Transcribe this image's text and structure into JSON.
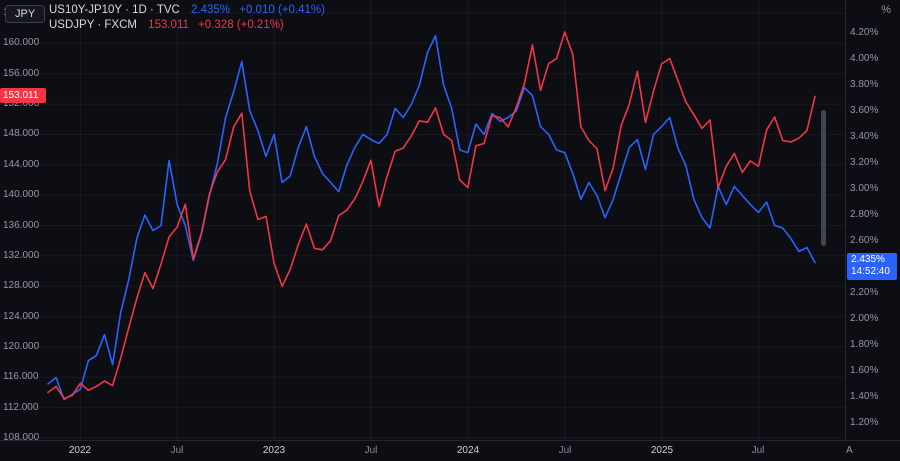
{
  "chip_left": "JPY",
  "chip_right": "%",
  "legend": {
    "rows": [
      {
        "title": "US10Y-JP10Y · 1D · TVC",
        "value": "2.435%",
        "change": "+0.010 (+0.41%)"
      },
      {
        "title": "USDJPY · FXCM",
        "value": "153.011",
        "change": "+0.328 (+0.21%)"
      }
    ]
  },
  "badges": {
    "left_price": "153.011",
    "right_value": "2.435%",
    "countdown": "14:52:40"
  },
  "corner_button": "A",
  "colors": {
    "blue": "#2962ff",
    "red": "#f23645",
    "grid": "rgba(255,255,255,0.05)",
    "axis_text": "#9298a3"
  },
  "chart_data": {
    "type": "line",
    "sampling": "semi-monthly points from Nov 2021 to mid-Oct 2025",
    "left_axis": {
      "min": 108,
      "max": 164,
      "step": 4,
      "currency": "JPY"
    },
    "right_axis": {
      "min": 1.2,
      "max": 4.2,
      "step": 0.2,
      "unit": "%"
    },
    "time_ticks": [
      {
        "label": "2022",
        "i": 4
      },
      {
        "label": "Jul",
        "i": 16
      },
      {
        "label": "2023",
        "i": 28
      },
      {
        "label": "Jul",
        "i": 40
      },
      {
        "label": "2024",
        "i": 52
      },
      {
        "label": "Jul",
        "i": 64
      },
      {
        "label": "2025",
        "i": 76
      },
      {
        "label": "Jul",
        "i": 88
      }
    ],
    "series": [
      {
        "name": "US10Y-JP10Y",
        "axis": "right",
        "color": "#2962ff",
        "last_value": 2.435,
        "values": [
          1.5,
          1.55,
          1.38,
          1.42,
          1.46,
          1.68,
          1.72,
          1.88,
          1.65,
          2.05,
          2.3,
          2.62,
          2.8,
          2.68,
          2.72,
          3.22,
          2.88,
          2.72,
          2.45,
          2.65,
          2.95,
          3.2,
          3.55,
          3.75,
          3.98,
          3.6,
          3.45,
          3.25,
          3.42,
          3.05,
          3.1,
          3.32,
          3.48,
          3.25,
          3.12,
          3.05,
          2.98,
          3.18,
          3.32,
          3.42,
          3.38,
          3.35,
          3.42,
          3.62,
          3.55,
          3.65,
          3.8,
          4.05,
          4.18,
          3.8,
          3.62,
          3.3,
          3.28,
          3.5,
          3.42,
          3.58,
          3.52,
          3.55,
          3.6,
          3.78,
          3.72,
          3.48,
          3.42,
          3.3,
          3.28,
          3.12,
          2.92,
          3.05,
          2.95,
          2.78,
          2.92,
          3.12,
          3.32,
          3.38,
          3.15,
          3.42,
          3.48,
          3.55,
          3.32,
          3.18,
          2.92,
          2.78,
          2.7,
          3.02,
          2.88,
          3.02,
          2.95,
          2.88,
          2.82,
          2.9,
          2.72,
          2.7,
          2.62,
          2.52,
          2.55,
          2.435
        ]
      },
      {
        "name": "USDJPY",
        "axis": "left",
        "color": "#f23645",
        "last_value": 153.011,
        "values": [
          114.0,
          114.8,
          113.2,
          113.6,
          115.2,
          114.3,
          114.8,
          115.5,
          114.9,
          118.5,
          122.5,
          126.4,
          129.8,
          127.7,
          130.9,
          134.5,
          135.8,
          138.8,
          131.6,
          135.0,
          140.2,
          143.1,
          144.7,
          149.0,
          150.8,
          140.5,
          136.8,
          137.2,
          131.0,
          128.0,
          130.2,
          133.5,
          136.2,
          133.0,
          132.8,
          134.0,
          137.3,
          138.0,
          139.5,
          141.8,
          144.6,
          138.5,
          142.5,
          145.8,
          146.2,
          147.8,
          149.8,
          149.6,
          151.5,
          148.0,
          147.2,
          142.0,
          141.0,
          146.5,
          146.8,
          150.5,
          150.2,
          149.0,
          151.6,
          154.6,
          159.8,
          153.8,
          157.3,
          158.0,
          161.5,
          158.5,
          149.0,
          147.2,
          146.1,
          140.6,
          143.6,
          149.2,
          152.0,
          156.3,
          149.6,
          153.7,
          157.3,
          158.0,
          155.2,
          152.3,
          150.6,
          148.8,
          149.9,
          141.0,
          143.8,
          145.5,
          143.0,
          144.5,
          143.8,
          148.6,
          150.3,
          147.2,
          147.0,
          147.5,
          148.5,
          153.011
        ]
      }
    ]
  }
}
